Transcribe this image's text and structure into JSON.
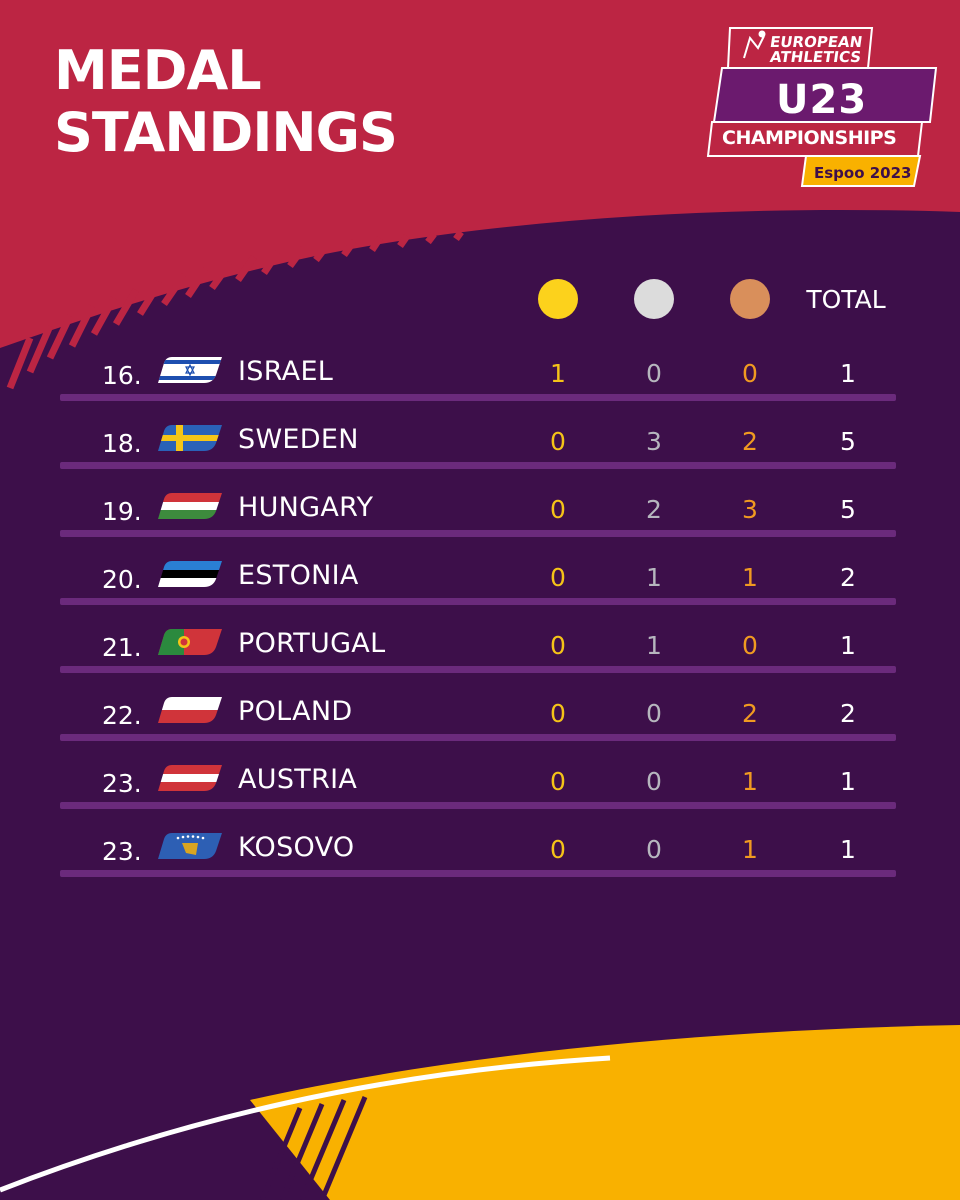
{
  "header": {
    "title_line1": "MEDAL",
    "title_line2": "STANDINGS"
  },
  "logo": {
    "line1": "EUROPEAN",
    "line2": "ATHLETICS",
    "event": "U23",
    "subtitle": "CHAMPIONSHIPS",
    "edition": "Espoo 2023"
  },
  "table": {
    "columns": {
      "gold_icon": "gold-medal",
      "silver_icon": "silver-medal",
      "bronze_icon": "bronze-medal",
      "total_label": "TOTAL"
    },
    "rows": [
      {
        "rank": "16.",
        "country": "ISRAEL",
        "flag": "israel-flag",
        "gold": "1",
        "silver": "0",
        "bronze": "0",
        "total": "1"
      },
      {
        "rank": "18.",
        "country": "SWEDEN",
        "flag": "sweden-flag",
        "gold": "0",
        "silver": "3",
        "bronze": "2",
        "total": "5"
      },
      {
        "rank": "19.",
        "country": "HUNGARY",
        "flag": "hungary-flag",
        "gold": "0",
        "silver": "2",
        "bronze": "3",
        "total": "5"
      },
      {
        "rank": "20.",
        "country": "ESTONIA",
        "flag": "estonia-flag",
        "gold": "0",
        "silver": "1",
        "bronze": "1",
        "total": "2"
      },
      {
        "rank": "21.",
        "country": "PORTUGAL",
        "flag": "portugal-flag",
        "gold": "0",
        "silver": "1",
        "bronze": "0",
        "total": "1"
      },
      {
        "rank": "22.",
        "country": "POLAND",
        "flag": "poland-flag",
        "gold": "0",
        "silver": "0",
        "bronze": "2",
        "total": "2"
      },
      {
        "rank": "23.",
        "country": "AUSTRIA",
        "flag": "austria-flag",
        "gold": "0",
        "silver": "0",
        "bronze": "1",
        "total": "1"
      },
      {
        "rank": "23.",
        "country": "KOSOVO",
        "flag": "kosovo-flag",
        "gold": "0",
        "silver": "0",
        "bronze": "1",
        "total": "1"
      }
    ]
  },
  "colors": {
    "background": "#3d0f4a",
    "header_red": "#bc2543",
    "gold": "#f5c318",
    "silver": "#b6b6be",
    "bronze": "#f09a21",
    "accent_yellow": "#f9b100"
  }
}
